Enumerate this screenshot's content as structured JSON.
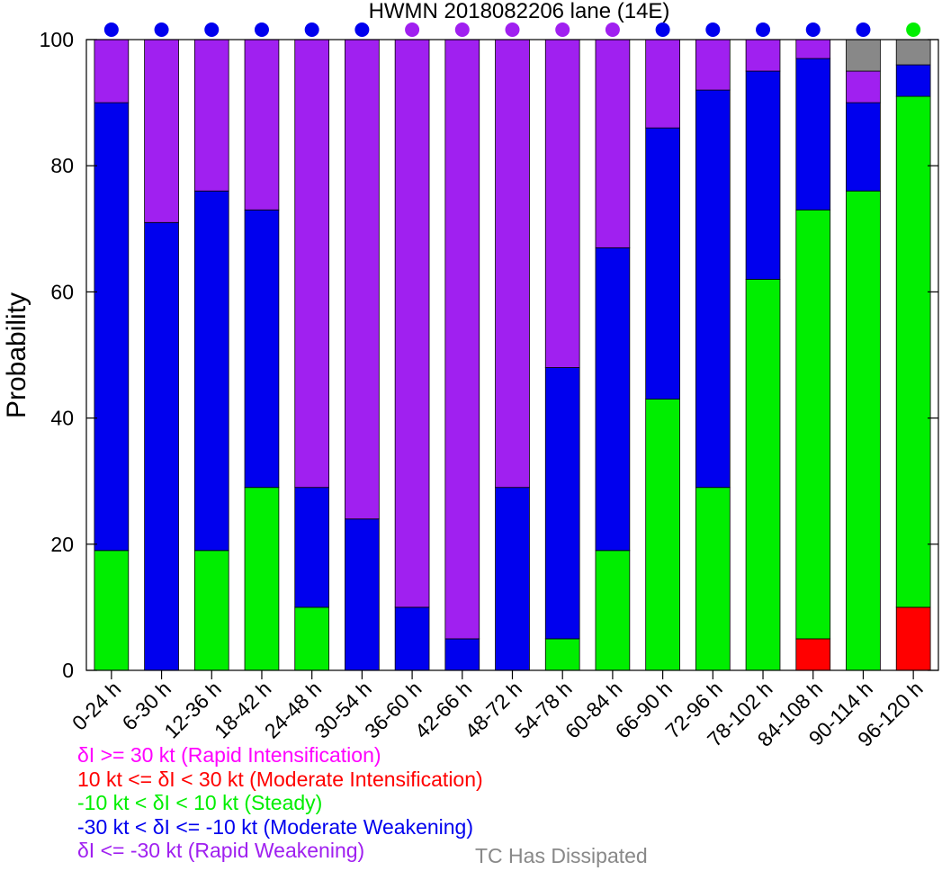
{
  "chart_data": {
    "type": "bar",
    "stacked": true,
    "title": "HWMN 2018082206 lane (14E)",
    "xlabel": "",
    "ylabel": "Probability",
    "ylim": [
      0,
      100
    ],
    "yticks": [
      0,
      20,
      40,
      60,
      80,
      100
    ],
    "grid": false,
    "categories": [
      "0-24 h",
      "6-30 h",
      "12-36 h",
      "18-42 h",
      "24-48 h",
      "30-54 h",
      "36-60 h",
      "42-66 h",
      "48-72 h",
      "54-78 h",
      "60-84 h",
      "66-90 h",
      "72-96 h",
      "78-102 h",
      "84-108 h",
      "90-114 h",
      "96-120 h"
    ],
    "series": [
      {
        "key": "moderate_intensification",
        "color": "#ff0000",
        "values": [
          0,
          0,
          0,
          0,
          0,
          0,
          0,
          0,
          0,
          0,
          0,
          0,
          0,
          0,
          5,
          0,
          10
        ]
      },
      {
        "key": "steady",
        "color": "#00ee00",
        "values": [
          19,
          0,
          19,
          29,
          10,
          0,
          0,
          0,
          0,
          5,
          19,
          43,
          29,
          62,
          68,
          76,
          81
        ]
      },
      {
        "key": "moderate_weakening",
        "color": "#0000ee",
        "values": [
          71,
          71,
          57,
          44,
          19,
          24,
          10,
          5,
          29,
          43,
          48,
          43,
          63,
          33,
          24,
          14,
          5
        ]
      },
      {
        "key": "rapid_weakening",
        "color": "#a020f0",
        "values": [
          10,
          29,
          24,
          27,
          71,
          76,
          90,
          95,
          71,
          52,
          33,
          14,
          8,
          5,
          3,
          5,
          0
        ]
      },
      {
        "key": "dissipated",
        "color": "#888888",
        "values": [
          0,
          0,
          0,
          0,
          0,
          0,
          0,
          0,
          0,
          0,
          0,
          0,
          0,
          0,
          0,
          5,
          4
        ]
      }
    ],
    "dot_colors": [
      "#0000ee",
      "#0000ee",
      "#0000ee",
      "#0000ee",
      "#0000ee",
      "#0000ee",
      "#a020f0",
      "#a020f0",
      "#a020f0",
      "#a020f0",
      "#a020f0",
      "#0000ee",
      "#0000ee",
      "#0000ee",
      "#0000ee",
      "#0000ee",
      "#00ee00"
    ]
  },
  "legend": {
    "items": [
      {
        "text": "δI >= 30 kt (Rapid Intensification)",
        "color": "#ff00ff"
      },
      {
        "text": "10 kt <= δI < 30 kt (Moderate Intensification)",
        "color": "#ff0000"
      },
      {
        "text": "-10 kt < δI < 10 kt (Steady)",
        "color": "#00ee00"
      },
      {
        "text": "-30 kt < δI <= -10 kt (Moderate Weakening)",
        "color": "#0000ee"
      },
      {
        "text": "δI <= -30 kt (Rapid Weakening)",
        "color": "#a020f0"
      }
    ],
    "dissipated": {
      "text": "TC Has Dissipated",
      "color": "#888888"
    }
  }
}
